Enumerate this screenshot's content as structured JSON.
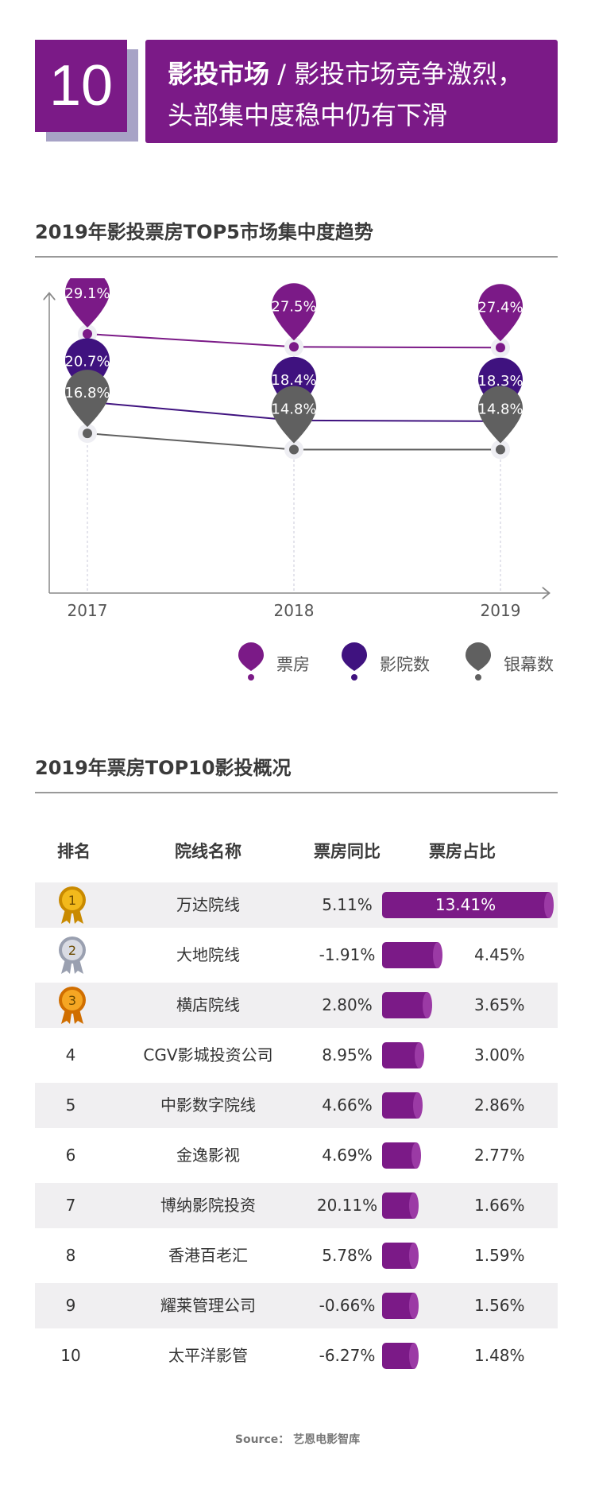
{
  "header": {
    "number": "10",
    "title_bold": "影投市场",
    "title_rest": " / 影投市场竞争激烈，",
    "title_line2": "头部集中度稳中仍有下滑"
  },
  "chart_section": {
    "title": "2019年影投票房TOP5市场集中度趋势"
  },
  "chart_data": [
    {
      "type": "line",
      "title": "2019年影投票房TOP5市场集中度趋势",
      "x": [
        "2017",
        "2018",
        "2019"
      ],
      "ylim": [
        0,
        35
      ],
      "series": [
        {
          "name": "票房",
          "values": [
            29.1,
            27.5,
            27.4
          ],
          "labels": [
            "29.1%",
            "27.5%",
            "27.4%"
          ],
          "color": "#7b1a87"
        },
        {
          "name": "影院数",
          "values": [
            20.7,
            18.4,
            18.3
          ],
          "labels": [
            "20.7%",
            "18.4%",
            "18.3%"
          ],
          "color": "#3f127f"
        },
        {
          "name": "银幕数",
          "values": [
            16.8,
            14.8,
            14.8
          ],
          "labels": [
            "16.8%",
            "14.8%",
            "14.8%"
          ],
          "color": "#606060"
        }
      ],
      "legend": "bottom-right"
    },
    {
      "type": "table",
      "title": "2019年票房TOP10影投概况",
      "columns": [
        "排名",
        "院线名称",
        "票房同比",
        "票房占比"
      ],
      "rows": [
        {
          "rank": "1",
          "name": "万达院线",
          "yoy": "5.11%",
          "share": 13.41,
          "share_label": "13.41%",
          "medal": "gold"
        },
        {
          "rank": "2",
          "name": "大地院线",
          "yoy": "-1.91%",
          "share": 4.45,
          "share_label": "4.45%",
          "medal": "silver"
        },
        {
          "rank": "3",
          "name": "横店院线",
          "yoy": "2.80%",
          "share": 3.65,
          "share_label": "3.65%",
          "medal": "bronze"
        },
        {
          "rank": "4",
          "name": "CGV影城投资公司",
          "yoy": "8.95%",
          "share": 3.0,
          "share_label": "3.00%"
        },
        {
          "rank": "5",
          "name": "中影数字院线",
          "yoy": "4.66%",
          "share": 2.86,
          "share_label": "2.86%"
        },
        {
          "rank": "6",
          "name": "金逸影视",
          "yoy": "4.69%",
          "share": 2.77,
          "share_label": "2.77%"
        },
        {
          "rank": "7",
          "name": "博纳影院投资",
          "yoy": "20.11%",
          "share": 1.66,
          "share_label": "1.66%"
        },
        {
          "rank": "8",
          "name": "香港百老汇",
          "yoy": "5.78%",
          "share": 1.59,
          "share_label": "1.59%"
        },
        {
          "rank": "9",
          "name": "耀莱管理公司",
          "yoy": "-0.66%",
          "share": 1.56,
          "share_label": "1.56%"
        },
        {
          "rank": "10",
          "name": "太平洋影管",
          "yoy": "-6.27%",
          "share": 1.48,
          "share_label": "1.48%"
        }
      ]
    }
  ],
  "table_section": {
    "title": "2019年票房TOP10影投概况"
  },
  "source": "Source： 艺恩电影智库"
}
